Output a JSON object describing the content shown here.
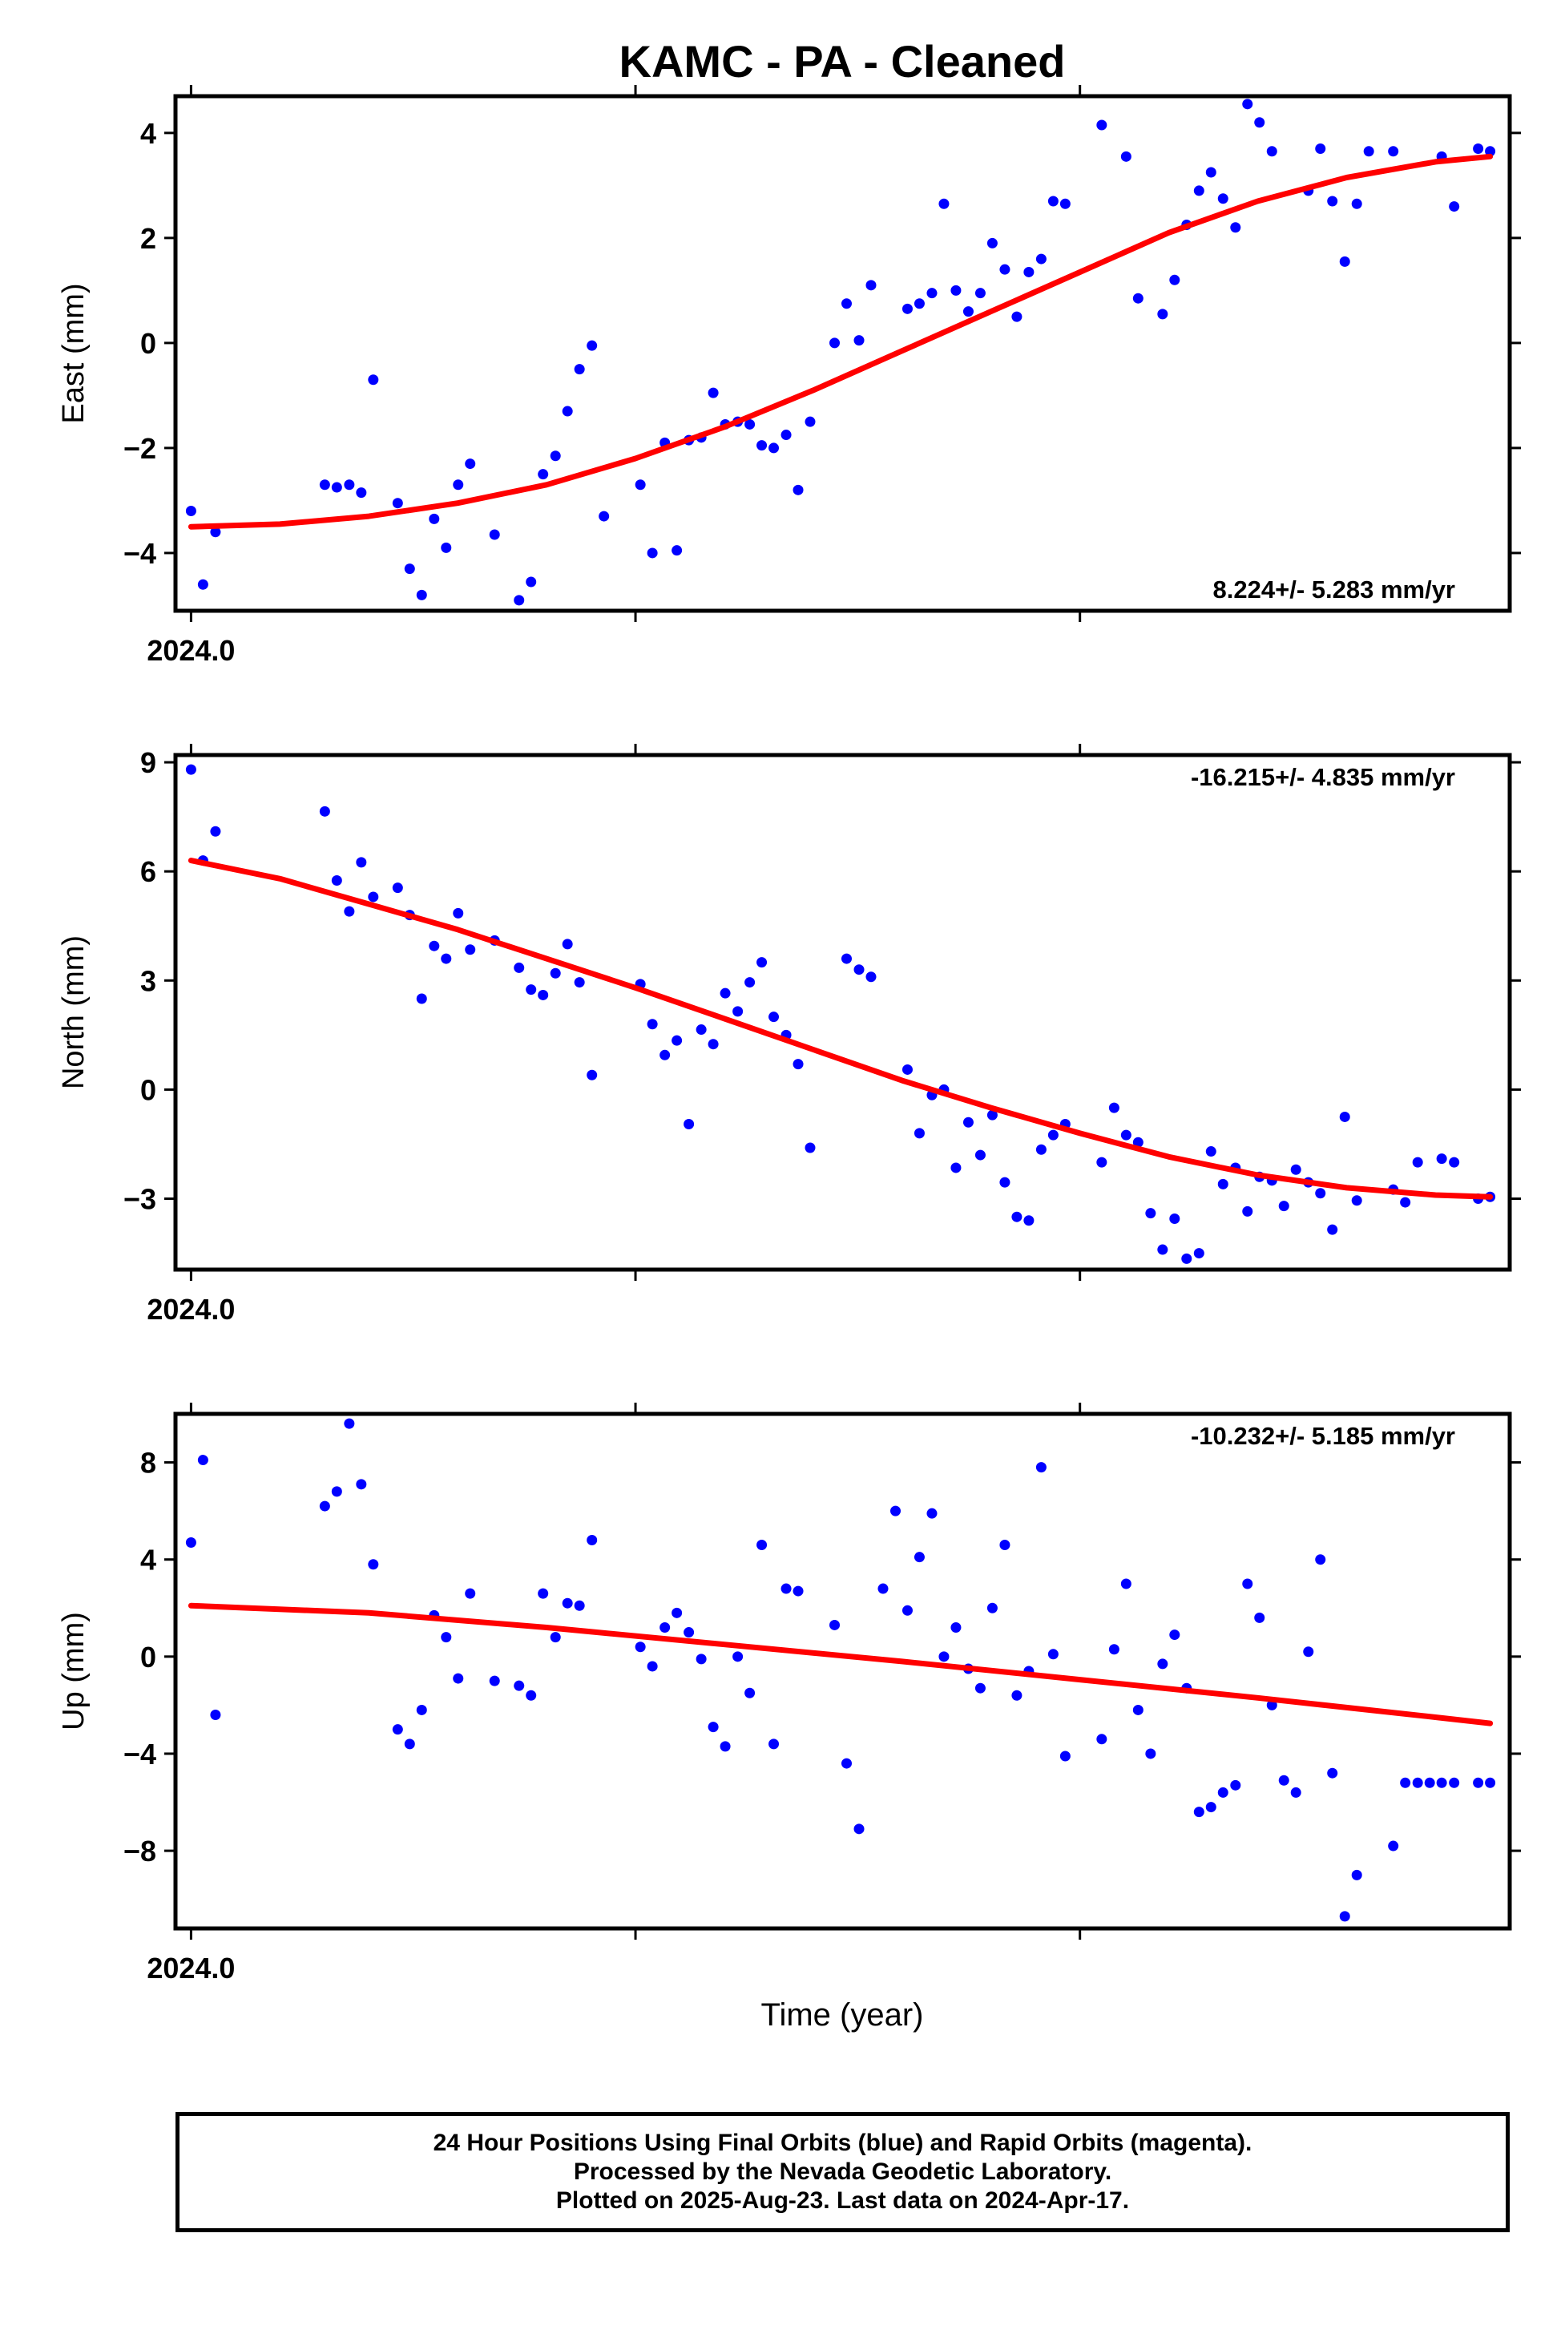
{
  "title": "KAMC  - PA - Cleaned",
  "xlabel": "Time (year)",
  "footer": [
    "24 Hour Positions Using Final Orbits (blue) and Rapid Orbits (magenta).",
    "Processed by the Nevada Geodetic Laboratory.",
    "Plotted on 2025-Aug-23. Last data on 2024-Apr-17."
  ],
  "colors": {
    "points": "#0000ff",
    "fit": "#ff0000",
    "axes": "#000000"
  },
  "chart_data": [
    {
      "type": "scatter",
      "component": "East",
      "ylabel": "East (mm)",
      "rate": "8.224+/- 5.283 mm/yr",
      "xlim": [
        2023.9965,
        2024.2967
      ],
      "ylim": [
        -5.1,
        4.7
      ],
      "yticks": [
        4,
        2,
        0,
        -2,
        -4
      ],
      "xticks": [
        2024.0,
        2024.1,
        2024.2
      ],
      "xtick_labels": [
        "2024.0",
        "",
        ""
      ],
      "points": {
        "x": [
          2024.0,
          2024.0027,
          2024.0055,
          2024.0301,
          2024.0328,
          2024.0356,
          2024.0383,
          2024.041,
          2024.0465,
          2024.0492,
          2024.0519,
          2024.0547,
          2024.0574,
          2024.0601,
          2024.0628,
          2024.0683,
          2024.0738,
          2024.0765,
          2024.0792,
          2024.082,
          2024.0847,
          2024.0874,
          2024.0902,
          2024.0929,
          2024.1011,
          2024.1038,
          2024.1066,
          2024.1093,
          2024.112,
          2024.1148,
          2024.1175,
          2024.1202,
          2024.123,
          2024.1257,
          2024.1284,
          2024.1311,
          2024.1339,
          2024.1366,
          2024.1393,
          2024.1448,
          2024.1475,
          2024.1503,
          2024.153,
          2024.1612,
          2024.1639,
          2024.1667,
          2024.1694,
          2024.1721,
          2024.1749,
          2024.1776,
          2024.1803,
          2024.1831,
          2024.1858,
          2024.1885,
          2024.1913,
          2024.194,
          2024.1967,
          2024.2049,
          2024.2104,
          2024.2131,
          2024.2186,
          2024.2213,
          2024.224,
          2024.2268,
          2024.2295,
          2024.2322,
          2024.235,
          2024.2377,
          2024.2404,
          2024.2432,
          2024.2514,
          2024.2541,
          2024.2568,
          2024.2596,
          2024.2623,
          2024.265,
          2024.2705,
          2024.2814,
          2024.2842,
          2024.2896,
          2024.2923
        ],
        "y": [
          -3.2,
          -4.6,
          -3.6,
          -2.7,
          -2.75,
          -2.7,
          -2.85,
          -0.7,
          -3.05,
          -4.3,
          -4.8,
          -3.35,
          -3.9,
          -2.7,
          -2.3,
          -3.65,
          -4.9,
          -4.55,
          -2.5,
          -2.15,
          -1.3,
          -0.5,
          -0.05,
          -3.3,
          -2.7,
          -4.0,
          -1.9,
          -3.95,
          -1.85,
          -1.8,
          -0.95,
          -1.55,
          -1.5,
          -1.55,
          -1.95,
          -2.0,
          -1.75,
          -2.8,
          -1.5,
          0.0,
          0.75,
          0.05,
          1.1,
          0.65,
          0.75,
          0.95,
          2.65,
          1.0,
          0.6,
          0.95,
          1.9,
          1.4,
          0.5,
          1.35,
          1.6,
          2.7,
          2.65,
          4.15,
          3.55,
          0.85,
          0.55,
          1.2,
          2.25,
          2.9,
          3.25,
          2.75,
          2.2,
          4.55,
          4.2,
          3.65,
          2.9,
          3.7,
          2.7,
          1.55,
          2.65,
          3.65,
          3.65,
          3.55,
          2.6,
          3.7,
          3.65
        ],
        "note_x_range": ""
      },
      "fit": {
        "x": [
          2024.0,
          2024.02,
          2024.04,
          2024.06,
          2024.08,
          2024.1,
          2024.12,
          2024.14,
          2024.16,
          2024.18,
          2024.2,
          2024.22,
          2024.24,
          2024.26,
          2024.28,
          2024.2923
        ],
        "y": [
          -3.5,
          -3.45,
          -3.3,
          -3.05,
          -2.7,
          -2.2,
          -1.6,
          -0.9,
          -0.15,
          0.6,
          1.35,
          2.1,
          2.7,
          3.15,
          3.45,
          3.55
        ]
      }
    },
    {
      "type": "scatter",
      "component": "North",
      "ylabel": "North (mm)",
      "rate": "-16.215+/- 4.835 mm/yr",
      "xlim": [
        2023.9965,
        2024.2967
      ],
      "ylim": [
        -4.95,
        9.2
      ],
      "yticks": [
        9,
        6,
        3,
        0,
        -3
      ],
      "xticks": [
        2024.0,
        2024.1,
        2024.2
      ],
      "xtick_labels": [
        "2024.0",
        "",
        ""
      ],
      "points": {
        "x": [
          2024.0,
          2024.0027,
          2024.0055,
          2024.0301,
          2024.0328,
          2024.0356,
          2024.0383,
          2024.041,
          2024.0465,
          2024.0492,
          2024.0519,
          2024.0547,
          2024.0574,
          2024.0601,
          2024.0628,
          2024.0683,
          2024.0738,
          2024.0765,
          2024.0792,
          2024.082,
          2024.0847,
          2024.0874,
          2024.0902,
          2024.1011,
          2024.1038,
          2024.1066,
          2024.1093,
          2024.112,
          2024.1148,
          2024.1175,
          2024.1202,
          2024.123,
          2024.1257,
          2024.1284,
          2024.1311,
          2024.1339,
          2024.1366,
          2024.1393,
          2024.1475,
          2024.1503,
          2024.153,
          2024.1612,
          2024.1639,
          2024.1667,
          2024.1694,
          2024.1721,
          2024.1749,
          2024.1776,
          2024.1803,
          2024.1831,
          2024.1858,
          2024.1885,
          2024.1913,
          2024.194,
          2024.1967,
          2024.2049,
          2024.2077,
          2024.2104,
          2024.2131,
          2024.2159,
          2024.2186,
          2024.2213,
          2024.224,
          2024.2268,
          2024.2295,
          2024.2322,
          2024.235,
          2024.2377,
          2024.2404,
          2024.2432,
          2024.2459,
          2024.2486,
          2024.2514,
          2024.2541,
          2024.2568,
          2024.2596,
          2024.2623,
          2024.2705,
          2024.2732,
          2024.276,
          2024.2814,
          2024.2842,
          2024.2896,
          2024.2923
        ],
        "y": [
          8.8,
          6.3,
          7.1,
          7.65,
          5.75,
          4.9,
          6.25,
          5.3,
          5.55,
          4.8,
          2.5,
          3.95,
          3.6,
          4.85,
          3.85,
          4.1,
          3.35,
          2.75,
          2.6,
          3.2,
          4.0,
          2.95,
          0.4,
          2.9,
          1.8,
          0.95,
          1.35,
          -0.95,
          1.65,
          1.25,
          2.65,
          2.15,
          2.95,
          3.5,
          2.0,
          1.5,
          0.7,
          -1.6,
          3.6,
          3.3,
          3.1,
          0.55,
          -1.2,
          -0.15,
          0.0,
          -2.15,
          -0.9,
          -1.8,
          -0.7,
          -2.55,
          -3.5,
          -3.6,
          -1.65,
          -1.25,
          -0.95,
          -2.0,
          -0.5,
          -1.25,
          -1.45,
          -3.4,
          -4.4,
          -3.55,
          -4.65,
          -4.5,
          -1.7,
          -2.6,
          -2.15,
          -3.35,
          -2.4,
          -2.5,
          -3.2,
          -2.2,
          -2.55,
          -2.85,
          -3.85,
          -0.75,
          -3.05,
          -2.75,
          -3.1,
          -2.0,
          -1.9,
          -2.0,
          -3.0,
          -2.95
        ],
        "note_x_range": ""
      },
      "fit": {
        "x": [
          2024.0,
          2024.02,
          2024.04,
          2024.06,
          2024.08,
          2024.1,
          2024.12,
          2024.14,
          2024.16,
          2024.18,
          2024.2,
          2024.22,
          2024.24,
          2024.26,
          2024.28,
          2024.2923
        ],
        "y": [
          6.3,
          5.8,
          5.1,
          4.4,
          3.6,
          2.8,
          1.95,
          1.1,
          0.25,
          -0.5,
          -1.2,
          -1.85,
          -2.35,
          -2.7,
          -2.9,
          -2.95
        ]
      }
    },
    {
      "type": "scatter",
      "component": "Up",
      "ylabel": "Up (mm)",
      "rate": "-10.232+/- 5.185 mm/yr",
      "xlim": [
        2023.9965,
        2024.2967
      ],
      "ylim": [
        -11.2,
        10.0
      ],
      "yticks": [
        8,
        4,
        0,
        -4,
        -8
      ],
      "xticks": [
        2024.0,
        2024.1,
        2024.2
      ],
      "xtick_labels": [
        "2024.0",
        "",
        ""
      ],
      "points": {
        "x": [
          2024.0,
          2024.0027,
          2024.0055,
          2024.0301,
          2024.0328,
          2024.0356,
          2024.0383,
          2024.041,
          2024.0465,
          2024.0492,
          2024.0519,
          2024.0547,
          2024.0574,
          2024.0601,
          2024.0628,
          2024.0683,
          2024.0738,
          2024.0765,
          2024.0792,
          2024.082,
          2024.0847,
          2024.0874,
          2024.0902,
          2024.1011,
          2024.1038,
          2024.1066,
          2024.1093,
          2024.112,
          2024.1148,
          2024.1175,
          2024.1202,
          2024.123,
          2024.1257,
          2024.1284,
          2024.1311,
          2024.1339,
          2024.1366,
          2024.1448,
          2024.1475,
          2024.1503,
          2024.1557,
          2024.1585,
          2024.1612,
          2024.1639,
          2024.1667,
          2024.1694,
          2024.1721,
          2024.1749,
          2024.1776,
          2024.1803,
          2024.1831,
          2024.1858,
          2024.1885,
          2024.1913,
          2024.194,
          2024.1967,
          2024.2049,
          2024.2077,
          2024.2104,
          2024.2131,
          2024.2159,
          2024.2186,
          2024.2213,
          2024.224,
          2024.2268,
          2024.2295,
          2024.2322,
          2024.235,
          2024.2377,
          2024.2404,
          2024.2432,
          2024.2459,
          2024.2486,
          2024.2514,
          2024.2541,
          2024.2568,
          2024.2596,
          2024.2623,
          2024.2705,
          2024.2732,
          2024.276,
          2024.2787,
          2024.2814,
          2024.2842,
          2024.2896,
          2024.2923
        ],
        "y": [
          4.7,
          8.1,
          -2.4,
          6.2,
          6.8,
          9.6,
          7.1,
          3.8,
          -3.0,
          -3.6,
          -2.2,
          1.7,
          0.8,
          -0.9,
          2.6,
          -1.0,
          -1.2,
          -1.6,
          2.6,
          0.8,
          2.2,
          2.1,
          4.8,
          0.4,
          -0.4,
          1.2,
          1.8,
          1.0,
          -0.1,
          -2.9,
          -3.7,
          0.0,
          -1.5,
          4.6,
          -3.6,
          2.8,
          2.7,
          1.3,
          -4.4,
          -7.1,
          2.8,
          6.0,
          1.9,
          4.1,
          5.9,
          0.0,
          1.2,
          -0.5,
          -1.3,
          2.0,
          4.6,
          -1.6,
          -0.6,
          7.8,
          0.1,
          -4.1,
          -3.4,
          0.3,
          3.0,
          -2.2,
          -4.0,
          -0.3,
          0.9,
          -1.3,
          -6.4,
          -6.2,
          -5.6,
          -5.3,
          3.0,
          1.6,
          -2.0,
          -5.1,
          -5.6,
          0.2,
          4.0,
          -4.8,
          -10.7,
          -9.0,
          -7.8,
          -5.2,
          -5.2,
          -5.2,
          -5.2,
          -5.2,
          -5.2,
          -5.2
        ],
        "note_x_range": ""
      },
      "fit": {
        "x": [
          2024.0,
          2024.04,
          2024.08,
          2024.12,
          2024.16,
          2024.2,
          2024.24,
          2024.28,
          2024.2923
        ],
        "y": [
          2.1,
          1.8,
          1.2,
          0.5,
          -0.2,
          -0.95,
          -1.7,
          -2.5,
          -2.75
        ]
      }
    }
  ]
}
